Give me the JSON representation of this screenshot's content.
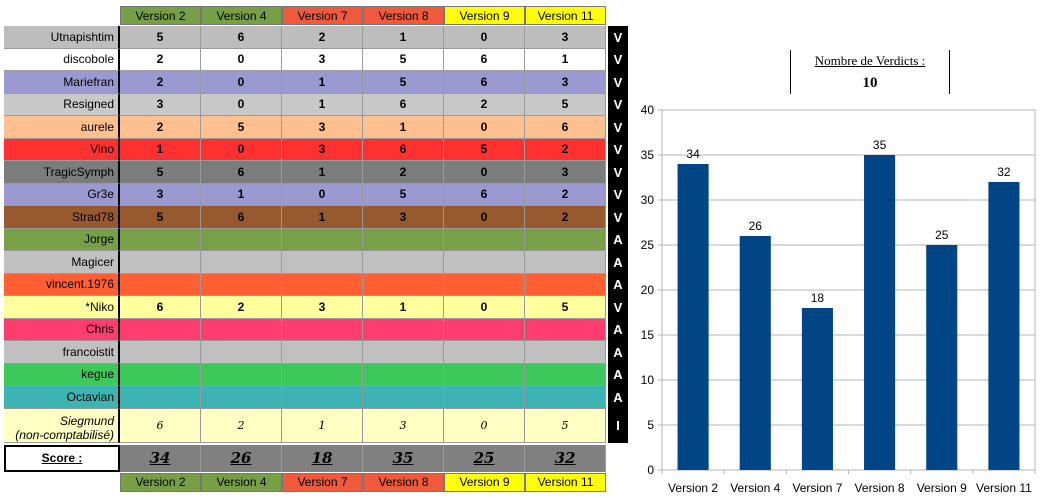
{
  "table": {
    "versions": [
      {
        "label": "Version 2",
        "color": "#77a046"
      },
      {
        "label": "Version 4",
        "color": "#77a046"
      },
      {
        "label": "Version 7",
        "color": "#ef5a3c"
      },
      {
        "label": "Version 8",
        "color": "#ef5a3c"
      },
      {
        "label": "Version 9",
        "color": "#ffff00"
      },
      {
        "label": "Version 11",
        "color": "#ffff00"
      }
    ],
    "rows": [
      {
        "name": "Utnapishtim",
        "color": "#bdbdbd",
        "values": [
          "5",
          "6",
          "2",
          "1",
          "0",
          "3"
        ],
        "verdict": "V"
      },
      {
        "name": "discobole",
        "color": "#ffffff",
        "values": [
          "2",
          "0",
          "3",
          "5",
          "6",
          "1"
        ],
        "verdict": "V"
      },
      {
        "name": "Mariefran",
        "color": "#9a9ad0",
        "values": [
          "2",
          "0",
          "1",
          "5",
          "6",
          "3"
        ],
        "verdict": "V"
      },
      {
        "name": "Resigned",
        "color": "#c8c8c8",
        "values": [
          "3",
          "0",
          "1",
          "6",
          "2",
          "5"
        ],
        "verdict": "V"
      },
      {
        "name": "aurele",
        "color": "#ffc090",
        "values": [
          "2",
          "5",
          "3",
          "1",
          "0",
          "6"
        ],
        "verdict": "V"
      },
      {
        "name": "Vino",
        "color": "#ff3030",
        "values": [
          "1",
          "0",
          "3",
          "6",
          "5",
          "2"
        ],
        "verdict": "V"
      },
      {
        "name": "TragicSymph",
        "color": "#7c7c7c",
        "values": [
          "5",
          "6",
          "1",
          "2",
          "0",
          "3"
        ],
        "verdict": "V"
      },
      {
        "name": "Gr3e",
        "color": "#9a9ad0",
        "values": [
          "3",
          "1",
          "0",
          "5",
          "6",
          "2"
        ],
        "verdict": "V"
      },
      {
        "name": "Strad78",
        "color": "#965a2e",
        "values": [
          "5",
          "6",
          "1",
          "3",
          "0",
          "2"
        ],
        "verdict": "V"
      },
      {
        "name": "Jorge",
        "color": "#78a046",
        "values": [
          "",
          "",
          "",
          "",
          "",
          ""
        ],
        "verdict": "A"
      },
      {
        "name": "Magicer",
        "color": "#c0c0c0",
        "values": [
          "",
          "",
          "",
          "",
          "",
          ""
        ],
        "verdict": "A"
      },
      {
        "name": "vincent.1976",
        "color": "#ff5f32",
        "values": [
          "",
          "",
          "",
          "",
          "",
          ""
        ],
        "verdict": "A"
      },
      {
        "name": "*Niko",
        "color": "#ffff9e",
        "values": [
          "6",
          "2",
          "3",
          "1",
          "0",
          "5"
        ],
        "verdict": "V"
      },
      {
        "name": "Chris",
        "color": "#ff3c6e",
        "values": [
          "",
          "",
          "",
          "",
          "",
          ""
        ],
        "verdict": "A"
      },
      {
        "name": "francoistit",
        "color": "#c0c0c0",
        "values": [
          "",
          "",
          "",
          "",
          "",
          ""
        ],
        "verdict": "A"
      },
      {
        "name": "kegue",
        "color": "#3cc85a",
        "values": [
          "",
          "",
          "",
          "",
          "",
          ""
        ],
        "verdict": "A"
      },
      {
        "name": "Octavian",
        "color": "#3cb4b4",
        "values": [
          "",
          "",
          "",
          "",
          "",
          ""
        ],
        "verdict": "A"
      }
    ],
    "siegmund": {
      "name_line1": "Siegmund",
      "name_line2": "(non-comptabilisé)",
      "color": "#ffffc4",
      "values": [
        "6",
        "2",
        "1",
        "3",
        "0",
        "5"
      ],
      "verdict": "I"
    },
    "score_label": "Score :",
    "scores": [
      "34",
      "26",
      "18",
      "35",
      "25",
      "32"
    ]
  },
  "verdicts": {
    "label": "Nombre de Verdicts :",
    "count": "10"
  },
  "chart_data": {
    "type": "bar",
    "categories": [
      "Version 2",
      "Version 4",
      "Version 7",
      "Version 8",
      "Version 9",
      "Version 11"
    ],
    "values": [
      34,
      26,
      18,
      35,
      25,
      32
    ],
    "ylim": [
      0,
      40
    ],
    "yticks": [
      0,
      5,
      10,
      15,
      20,
      25,
      30,
      35,
      40
    ],
    "grid": true,
    "legend": "none",
    "bar_color": "#004586"
  }
}
